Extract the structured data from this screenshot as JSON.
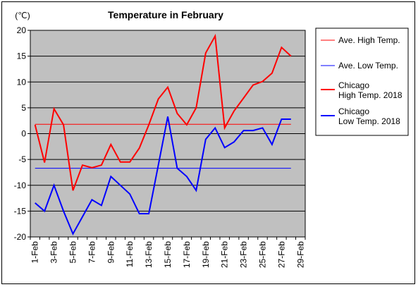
{
  "chart_data": {
    "type": "line",
    "title": "Temperature in February",
    "ylabel": "(℃)",
    "ylim": [
      -20,
      20
    ],
    "yticks": [
      20,
      15,
      10,
      5,
      0,
      -5,
      -10,
      -15,
      -20
    ],
    "categories": [
      "1-Feb",
      "2-Feb",
      "3-Feb",
      "4-Feb",
      "5-Feb",
      "6-Feb",
      "7-Feb",
      "8-Feb",
      "9-Feb",
      "10-Feb",
      "11-Feb",
      "12-Feb",
      "13-Feb",
      "14-Feb",
      "15-Feb",
      "16-Feb",
      "17-Feb",
      "18-Feb",
      "19-Feb",
      "20-Feb",
      "21-Feb",
      "22-Feb",
      "23-Feb",
      "24-Feb",
      "25-Feb",
      "26-Feb",
      "27-Feb",
      "28-Feb"
    ],
    "x_tick_labels": [
      "1-Feb",
      "3-Feb",
      "5-Feb",
      "7-Feb",
      "9-Feb",
      "11-Feb",
      "13-Feb",
      "15-Feb",
      "17-Feb",
      "19-Feb",
      "21-Feb",
      "23-Feb",
      "25-Feb",
      "27-Feb",
      "29-Feb"
    ],
    "grid": true,
    "legend_position": "right",
    "plot_background": "#c0c0c0",
    "series": [
      {
        "name": "Ave. High Temp.",
        "label_lines": [
          "Ave. High Temp."
        ],
        "color": "#ff0000",
        "stroke": "thin",
        "values": [
          1.8,
          1.8,
          1.8,
          1.8,
          1.8,
          1.8,
          1.8,
          1.8,
          1.8,
          1.8,
          1.8,
          1.8,
          1.8,
          1.8,
          1.8,
          1.8,
          1.8,
          1.8,
          1.8,
          1.8,
          1.8,
          1.8,
          1.8,
          1.8,
          1.8,
          1.8,
          1.8,
          1.8
        ]
      },
      {
        "name": "Ave. Low Temp.",
        "label_lines": [
          "Ave. Low Temp."
        ],
        "color": "#0000ff",
        "stroke": "thin",
        "values": [
          -6.7,
          -6.7,
          -6.7,
          -6.7,
          -6.7,
          -6.7,
          -6.7,
          -6.7,
          -6.7,
          -6.7,
          -6.7,
          -6.7,
          -6.7,
          -6.7,
          -6.7,
          -6.7,
          -6.7,
          -6.7,
          -6.7,
          -6.7,
          -6.7,
          -6.7,
          -6.7,
          -6.7,
          -6.7,
          -6.7,
          -6.7,
          -6.7
        ]
      },
      {
        "name": "Chicago High Temp. 2018",
        "label_lines": [
          "Chicago",
          "High Temp. 2018"
        ],
        "color": "#ff0000",
        "stroke": "thick",
        "values": [
          1.7,
          -5.6,
          4.8,
          1.7,
          -11.0,
          -6.1,
          -6.6,
          -6.1,
          -2.1,
          -5.5,
          -5.5,
          -2.8,
          1.7,
          6.7,
          9.0,
          3.9,
          1.7,
          5.0,
          15.6,
          18.9,
          1.1,
          4.4,
          6.9,
          9.4,
          10.1,
          11.7,
          16.7,
          15.0
        ]
      },
      {
        "name": "Chicago Low Temp. 2018",
        "label_lines": [
          "Chicago",
          "Low Temp. 2018"
        ],
        "color": "#0000ff",
        "stroke": "thick",
        "values": [
          -13.4,
          -15.0,
          -10.0,
          -15.0,
          -19.4,
          -16.1,
          -12.8,
          -13.9,
          -8.3,
          -10.0,
          -11.7,
          -15.5,
          -15.5,
          -6.1,
          3.3,
          -6.7,
          -8.3,
          -11.0,
          -1.1,
          1.1,
          -2.7,
          -1.6,
          0.6,
          0.6,
          1.1,
          -2.1,
          2.8,
          2.8
        ]
      }
    ]
  }
}
